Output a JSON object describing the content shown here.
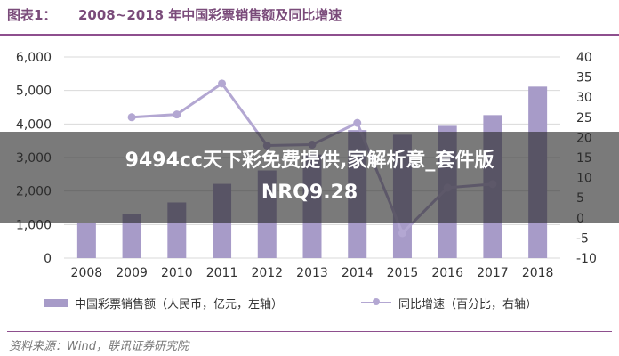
{
  "header": {
    "fig_label": "图表1：",
    "title": "2008~2018 年中国彩票销售额及同比增速"
  },
  "chart_data": {
    "type": "bar+line",
    "categories": [
      "2008",
      "2009",
      "2010",
      "2011",
      "2012",
      "2013",
      "2014",
      "2015",
      "2016",
      "2017",
      "2018"
    ],
    "series": [
      {
        "name": "中国彩票销售额（人民币，亿元，左轴）",
        "type": "bar",
        "axis": "left",
        "values": [
          1060,
          1325,
          1660,
          2215,
          2615,
          3090,
          3820,
          3680,
          3945,
          4265,
          5115
        ]
      },
      {
        "name": "同比增速（百分比，右轴）",
        "type": "line",
        "axis": "right",
        "values": [
          null,
          25.0,
          25.7,
          33.4,
          18.0,
          18.2,
          23.6,
          -3.8,
          7.5,
          8.4,
          null
        ]
      }
    ],
    "left_axis": {
      "min": 0,
      "max": 6000,
      "ticks": [
        "0",
        "1,000",
        "2,000",
        "3,000",
        "4,000",
        "5,000",
        "6,000"
      ]
    },
    "right_axis": {
      "min": -10,
      "max": 40,
      "ticks": [
        "-10",
        "-5",
        "0",
        "5",
        "10",
        "15",
        "20",
        "25",
        "30",
        "35",
        "40"
      ]
    },
    "grid": true,
    "legend_position": "bottom",
    "colors": {
      "bar": "#a79bc8",
      "line": "#b3a7d2",
      "grid": "#d9d9d9"
    }
  },
  "legend": {
    "bar_label": "中国彩票销售额（人民币，亿元，左轴）",
    "line_label": "同比增速（百分比，右轴）"
  },
  "source": "资料来源：Wind，联讯证券研究院",
  "overlay": {
    "line1": "9494cc天下彩免费提供,家解析意_套件版",
    "line2": "NRQ9.28"
  }
}
